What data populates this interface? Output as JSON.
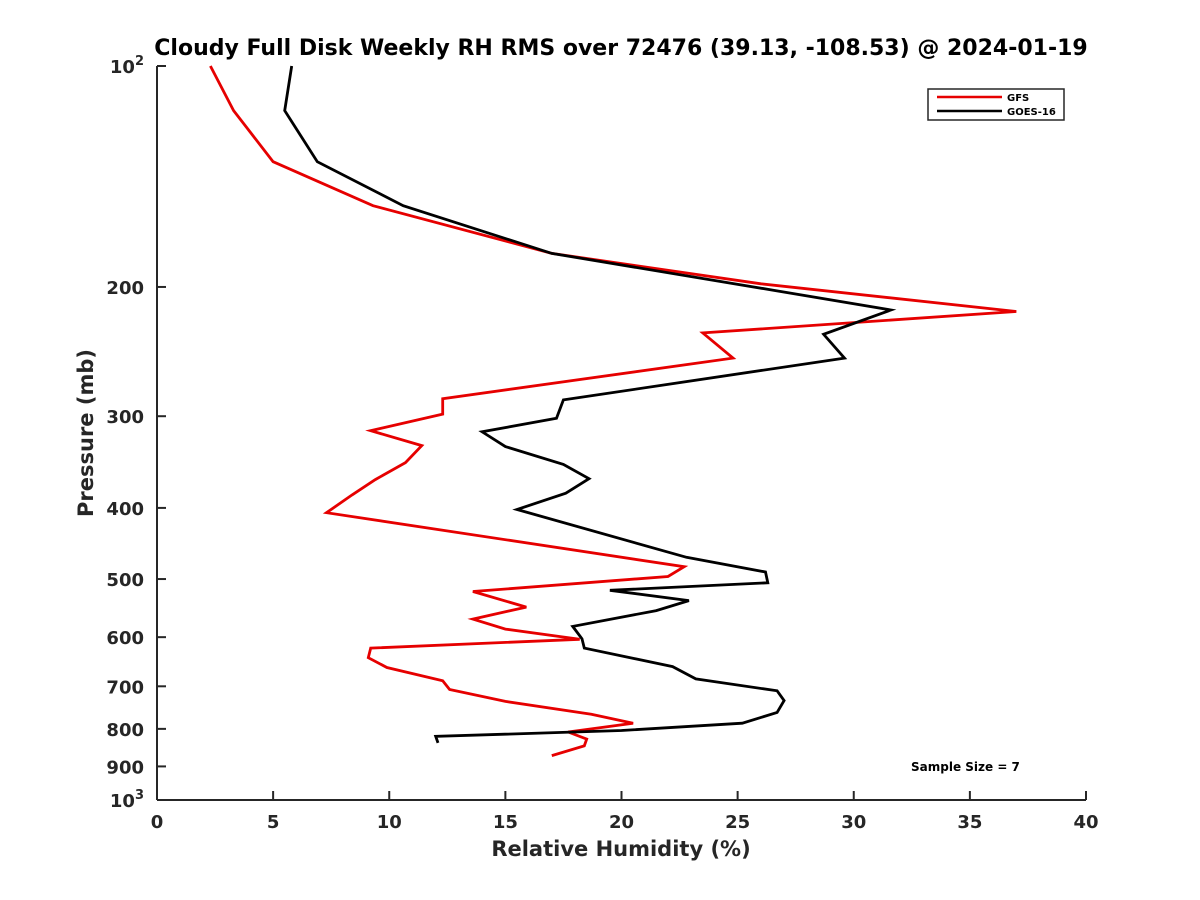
{
  "chart_data": {
    "type": "line",
    "title": "Cloudy Full Disk Weekly RH RMS over 72476 (39.13, -108.53) @ 2024-01-19",
    "xlabel": "Relative Humidity (%)",
    "ylabel": "Pressure (mb)",
    "xlim": [
      0,
      40
    ],
    "ylim": [
      100,
      1000
    ],
    "y_scale": "log",
    "y_reversed": true,
    "grid": false,
    "legend_position": "top-right",
    "x_ticks": [
      "0",
      "5",
      "10",
      "15",
      "20",
      "25",
      "30",
      "35",
      "40"
    ],
    "x_tick_values": [
      0,
      5,
      10,
      15,
      20,
      25,
      30,
      35,
      40
    ],
    "y_ticks": [
      {
        "value": 100,
        "base": "10",
        "exp": "2"
      },
      {
        "value": 200,
        "label": "200"
      },
      {
        "value": 300,
        "label": "300"
      },
      {
        "value": 400,
        "label": "400"
      },
      {
        "value": 500,
        "label": "500"
      },
      {
        "value": 600,
        "label": "600"
      },
      {
        "value": 700,
        "label": "700"
      },
      {
        "value": 800,
        "label": "800"
      },
      {
        "value": 900,
        "label": "900"
      },
      {
        "value": 1000,
        "base": "10",
        "exp": "3"
      }
    ],
    "series": [
      {
        "name": "GFS",
        "color": "#e60000",
        "points": [
          [
            2.3,
            100
          ],
          [
            3.3,
            115
          ],
          [
            5.0,
            135
          ],
          [
            9.3,
            155
          ],
          [
            17.0,
            180
          ],
          [
            26.0,
            198
          ],
          [
            37.0,
            216
          ],
          [
            23.5,
            231
          ],
          [
            24.8,
            250
          ],
          [
            12.3,
            284
          ],
          [
            12.3,
            298
          ],
          [
            9.2,
            314
          ],
          [
            11.4,
            329
          ],
          [
            10.7,
            347
          ],
          [
            9.4,
            366
          ],
          [
            8.4,
            384
          ],
          [
            7.3,
            406
          ],
          [
            22.7,
            481
          ],
          [
            22.0,
            496
          ],
          [
            13.6,
            520
          ],
          [
            15.9,
            546
          ],
          [
            13.6,
            567
          ],
          [
            15.0,
            585
          ],
          [
            18.2,
            604
          ],
          [
            9.2,
            621
          ],
          [
            9.1,
            640
          ],
          [
            9.9,
            660
          ],
          [
            12.3,
            688
          ],
          [
            12.6,
            707
          ],
          [
            15.0,
            734
          ],
          [
            18.7,
            764
          ],
          [
            20.5,
            786
          ],
          [
            17.7,
            808
          ],
          [
            18.5,
            826
          ],
          [
            18.4,
            844
          ],
          [
            17.0,
            870
          ]
        ]
      },
      {
        "name": "GOES-16",
        "color": "#000000",
        "points": [
          [
            5.8,
            100
          ],
          [
            5.5,
            115
          ],
          [
            6.9,
            135
          ],
          [
            10.6,
            155
          ],
          [
            17.0,
            180
          ],
          [
            26.5,
            202
          ],
          [
            31.6,
            215
          ],
          [
            28.7,
            232
          ],
          [
            29.6,
            250
          ],
          [
            17.5,
            285
          ],
          [
            17.2,
            302
          ],
          [
            14.0,
            315
          ],
          [
            15.0,
            330
          ],
          [
            17.5,
            349
          ],
          [
            18.6,
            365
          ],
          [
            17.6,
            382
          ],
          [
            15.5,
            402
          ],
          [
            22.8,
            467
          ],
          [
            26.2,
            489
          ],
          [
            26.3,
            506
          ],
          [
            19.5,
            518
          ],
          [
            22.9,
            535
          ],
          [
            21.5,
            552
          ],
          [
            17.9,
            580
          ],
          [
            18.3,
            603
          ],
          [
            18.4,
            621
          ],
          [
            22.2,
            658
          ],
          [
            23.2,
            684
          ],
          [
            26.7,
            710
          ],
          [
            27.0,
            732
          ],
          [
            26.7,
            760
          ],
          [
            25.2,
            786
          ],
          [
            20.0,
            804
          ],
          [
            12.0,
            819
          ],
          [
            12.1,
            836
          ]
        ]
      }
    ],
    "annotation": "Sample Size = 7"
  }
}
